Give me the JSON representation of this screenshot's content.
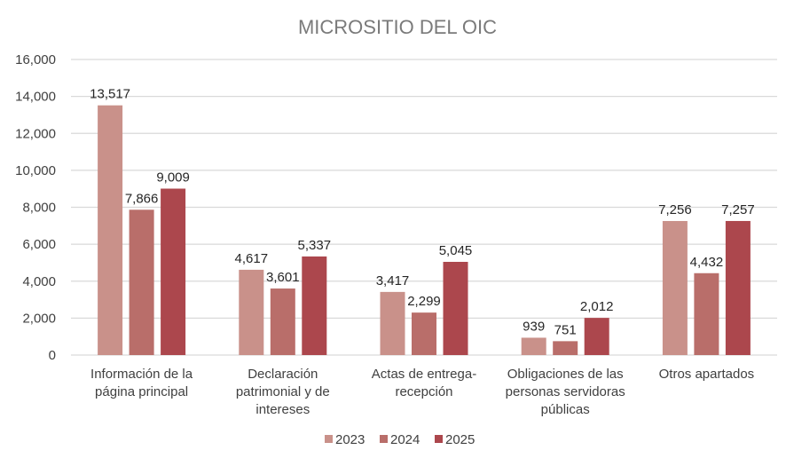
{
  "chart_data": {
    "type": "bar",
    "title": "MICROSITIO DEL OIC",
    "xlabel": "",
    "ylabel": "",
    "ylim": [
      0,
      16000
    ],
    "yticks": [
      0,
      2000,
      4000,
      6000,
      8000,
      10000,
      12000,
      14000,
      16000
    ],
    "ytick_labels": [
      "0",
      "2,000",
      "4,000",
      "6,000",
      "8,000",
      "10,000",
      "12,000",
      "14,000",
      "16,000"
    ],
    "grid": true,
    "legend_position": "bottom",
    "categories": [
      "Información de la página principal",
      "Declaración patrimonial y de intereses",
      "Actas de entrega-recepción",
      "Obligaciones de las personas servidoras públicas",
      "Otros apartados"
    ],
    "category_lines": [
      [
        "Información de la",
        "página principal"
      ],
      [
        "Declaración",
        "patrimonial y de",
        "intereses"
      ],
      [
        "Actas de entrega-",
        "recepción"
      ],
      [
        "Obligaciones de las",
        "personas servidoras",
        "públicas"
      ],
      [
        "Otros apartados"
      ]
    ],
    "series": [
      {
        "name": "2023",
        "color": "#c9918a",
        "values": [
          13517,
          4617,
          3417,
          939,
          7256
        ],
        "labels": [
          "13,517",
          "4,617",
          "3,417",
          "939",
          "7,256"
        ]
      },
      {
        "name": "2024",
        "color": "#b96e6a",
        "values": [
          7866,
          3601,
          2299,
          751,
          4432
        ],
        "labels": [
          "7,866",
          "3,601",
          "2,299",
          "751",
          "4,432"
        ]
      },
      {
        "name": "2025",
        "color": "#ac474d",
        "values": [
          9009,
          5337,
          5045,
          2012,
          7257
        ],
        "labels": [
          "9,009",
          "5,337",
          "5,045",
          "2,012",
          "7,257"
        ]
      }
    ]
  }
}
